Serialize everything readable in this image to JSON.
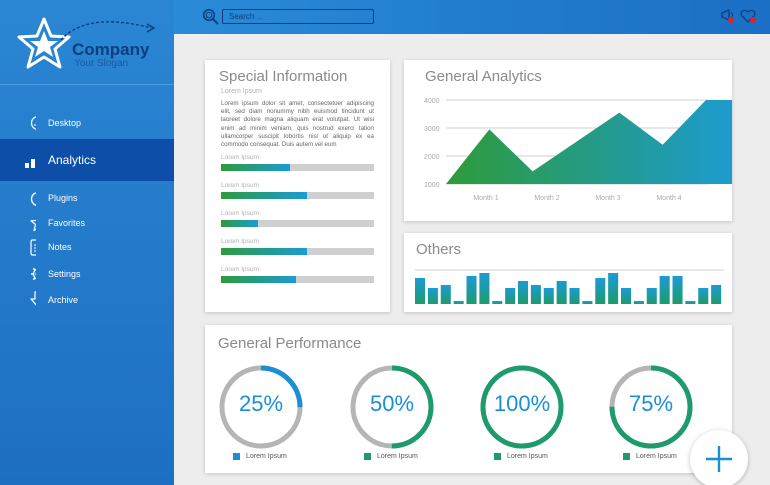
{
  "brand": {
    "name": "Company",
    "slogan": "Your Slogan",
    "icon": "star-icon"
  },
  "search": {
    "placeholder": "Search ..."
  },
  "topbar": {
    "icons": [
      "notification-icon",
      "favorites-icon"
    ]
  },
  "sidebar": {
    "items": [
      {
        "label": "Desktop",
        "icon": "gauge-icon",
        "active": false
      },
      {
        "label": "Analytics",
        "icon": "bar-chart-icon",
        "active": true
      },
      {
        "label": "Plugins",
        "icon": "power-icon",
        "active": false
      },
      {
        "label": "Favorites",
        "icon": "star-icon",
        "active": false
      },
      {
        "label": "Notes",
        "icon": "notes-icon",
        "active": false
      },
      {
        "label": "Settings",
        "icon": "gear-icon",
        "active": false
      },
      {
        "label": "Archive",
        "icon": "download-arrow-icon",
        "active": false
      }
    ]
  },
  "special": {
    "title": "Special Information",
    "subtitle": "Lorem Ipsum",
    "paragraph": "Lorem ipsum dolor sit amet, consectetuer adipiscing elit, sed diam nonummy nibh euismod tincidunt ut laoreet dolore magna aliquam erat volutpat. Ut wisi enim ad minim veniam, quis nostrud exerci tation ullamcorper suscipit lobortis nisl ut aliquip ex ea commodo consequat. Duis autem vel eum",
    "bars": [
      {
        "label": "Lorem Ipsum",
        "value": 0.45
      },
      {
        "label": "Lorem Ipsum",
        "value": 0.56
      },
      {
        "label": "Lorem Ipsum",
        "value": 0.24
      },
      {
        "label": "Lorem Ipsum",
        "value": 0.56
      },
      {
        "label": "Lorem Ipsum",
        "value": 0.49
      }
    ]
  },
  "analytics": {
    "title": "General Analytics"
  },
  "others": {
    "title": "Others"
  },
  "performance": {
    "title": "General Performance",
    "items": [
      {
        "value": 25,
        "label": "25%",
        "legend": "Lorem Ipsum",
        "color": "#1b8fd3"
      },
      {
        "value": 50,
        "label": "50%",
        "legend": "Lorem Ipsum",
        "color": "#1e9b6b"
      },
      {
        "value": 100,
        "label": "100%",
        "legend": "Lorem Ipsum",
        "color": "#1e9b6b"
      },
      {
        "value": 75,
        "label": "75%",
        "legend": "Lorem Ipsum",
        "color": "#1e9b6b"
      }
    ]
  },
  "colors": {
    "accent": "#1b8fd3",
    "green": "#2e9b3a",
    "sidebar": "#1e6fc2",
    "active": "#0c4ea8"
  },
  "chart_data": [
    {
      "type": "area",
      "title": "General Analytics",
      "categories": [
        "Month 1",
        "Month 2",
        "Month 3",
        "Month 4"
      ],
      "x": [
        1,
        1.5,
        2,
        2.5,
        3,
        3.5,
        4,
        4.5
      ],
      "values": [
        1000,
        2950,
        1450,
        2500,
        3550,
        2400,
        4000,
        4000
      ],
      "y_ticks": [
        "4000",
        "3000",
        "2000",
        "1000"
      ],
      "ylim": [
        1000,
        4000
      ],
      "grid": true
    },
    {
      "type": "bar",
      "title": "Others",
      "values": [
        26,
        16,
        19,
        3,
        28,
        31,
        3,
        16,
        23,
        19,
        16,
        23,
        16,
        3,
        26,
        31,
        16,
        3,
        16,
        28,
        28,
        3,
        16,
        19
      ],
      "ylim": [
        0,
        34
      ],
      "grid": true
    }
  ]
}
